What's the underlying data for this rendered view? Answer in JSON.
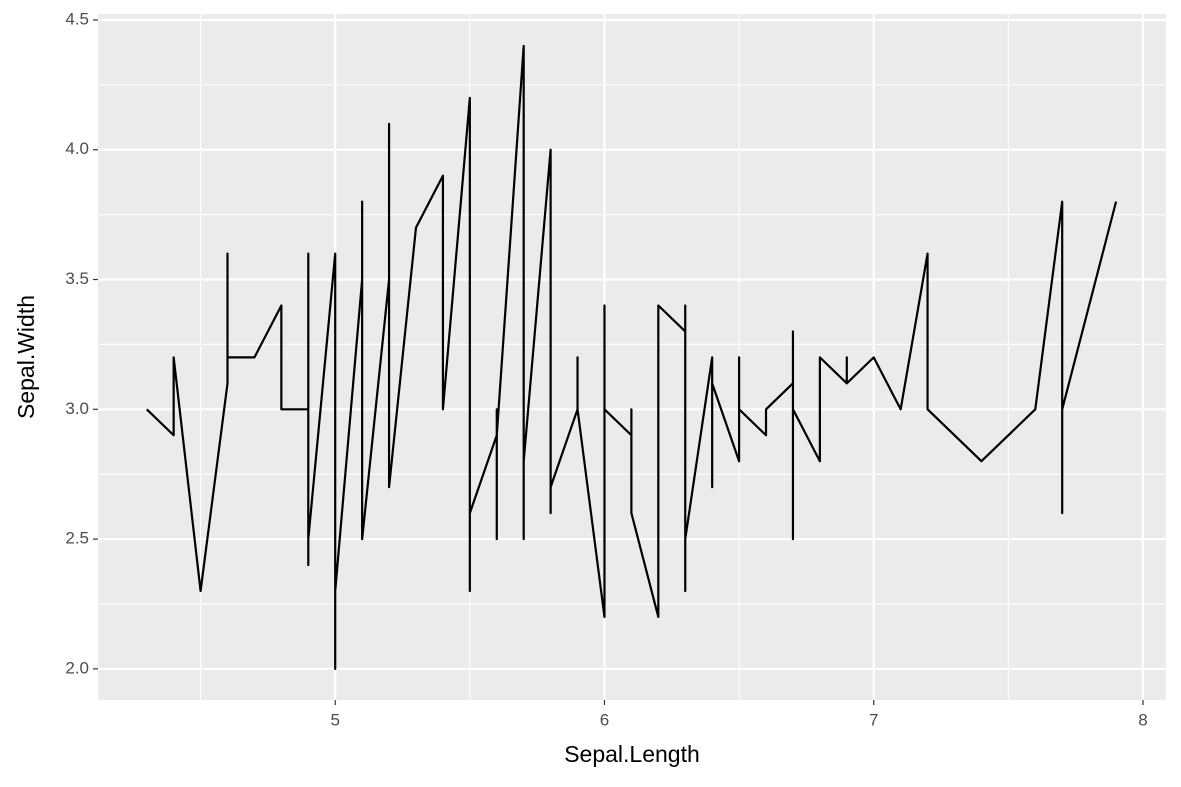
{
  "chart_data": {
    "type": "line",
    "x_label": "Sepal.Length",
    "y_label": "Sepal.Width",
    "x": [
      4.3,
      4.4,
      4.4,
      4.5,
      4.6,
      4.6,
      4.6,
      4.7,
      4.7,
      4.8,
      4.8,
      4.9,
      4.9,
      4.9,
      4.9,
      5.0,
      5.0,
      5.0,
      5.1,
      5.1,
      5.1,
      5.2,
      5.2,
      5.2,
      5.3,
      5.4,
      5.4,
      5.5,
      5.5,
      5.5,
      5.6,
      5.6,
      5.6,
      5.6,
      5.7,
      5.7,
      5.7,
      5.8,
      5.8,
      5.8,
      5.9,
      5.9,
      5.9,
      6.0,
      6.0,
      6.0,
      6.1,
      6.1,
      6.1,
      6.1,
      6.2,
      6.2,
      6.2,
      6.2,
      6.3,
      6.3,
      6.3,
      6.3,
      6.4,
      6.4,
      6.4,
      6.5,
      6.5,
      6.5,
      6.6,
      6.6,
      6.7,
      6.7,
      6.7,
      6.7,
      6.8,
      6.8,
      6.9,
      6.9,
      6.9,
      7.0,
      7.1,
      7.2,
      7.2,
      7.4,
      7.6,
      7.7,
      7.7,
      7.7,
      7.9
    ],
    "y": [
      3.0,
      2.9,
      3.2,
      2.3,
      3.1,
      3.6,
      3.2,
      3.2,
      3.2,
      3.4,
      3.0,
      3.0,
      3.6,
      2.4,
      2.5,
      3.6,
      2.0,
      2.3,
      3.5,
      3.8,
      2.5,
      3.5,
      4.1,
      2.7,
      3.7,
      3.9,
      3.0,
      4.2,
      2.3,
      2.6,
      2.9,
      3.0,
      2.5,
      2.9,
      4.4,
      2.5,
      2.8,
      4.0,
      2.6,
      2.7,
      3.0,
      3.2,
      3.0,
      2.2,
      3.4,
      3.0,
      2.9,
      3.0,
      2.8,
      2.6,
      2.2,
      2.9,
      2.8,
      3.4,
      3.3,
      3.4,
      2.3,
      2.5,
      3.2,
      2.7,
      3.1,
      2.8,
      3.2,
      3.0,
      2.9,
      3.0,
      3.1,
      3.3,
      2.5,
      3.0,
      2.8,
      3.2,
      3.1,
      3.2,
      3.1,
      3.2,
      3.0,
      3.6,
      3.0,
      2.8,
      3.0,
      3.8,
      2.6,
      3.0,
      3.8
    ],
    "color": "#000000",
    "xlim": [
      4.119,
      8.0855
    ],
    "ylim": [
      1.88,
      4.523
    ],
    "xticks": [
      5,
      6,
      7,
      8
    ],
    "yticks": [
      {
        "value": 2,
        "label": "2.0"
      },
      {
        "value": 2.5,
        "label": "2.5"
      },
      {
        "value": 3,
        "label": "3.0"
      },
      {
        "value": 3.5,
        "label": "3.5"
      },
      {
        "value": 4,
        "label": "4.0"
      },
      {
        "value": 4.5,
        "label": "4.5"
      }
    ],
    "grid": true
  }
}
